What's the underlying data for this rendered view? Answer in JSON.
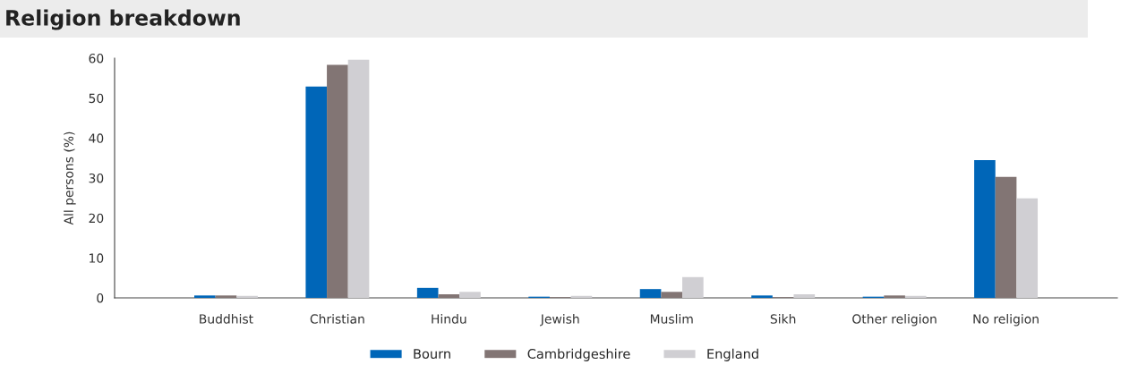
{
  "chart_data": {
    "type": "bar",
    "title": "Religion breakdown",
    "ylabel": "All persons (%)",
    "categories": [
      "Buddhist",
      "Christian",
      "Hindu",
      "Jewish",
      "Muslim",
      "Sikh",
      "Other religion",
      "No religion"
    ],
    "series": [
      {
        "name": "Bourn",
        "color": "#0066b8",
        "values": [
          0.6,
          52.9,
          2.5,
          0.3,
          2.2,
          0.6,
          0.3,
          34.5
        ]
      },
      {
        "name": "Cambridgeshire",
        "color": "#827574",
        "values": [
          0.6,
          58.3,
          0.9,
          0.2,
          1.5,
          0.2,
          0.6,
          30.3
        ]
      },
      {
        "name": "England",
        "color": "#d0cfd3",
        "values": [
          0.5,
          59.6,
          1.5,
          0.5,
          5.2,
          0.9,
          0.5,
          24.9
        ]
      }
    ],
    "ylim": [
      0,
      60
    ],
    "yticks": [
      0,
      10,
      20,
      30,
      40,
      50,
      60
    ],
    "grid": false,
    "legend": "bottom"
  }
}
